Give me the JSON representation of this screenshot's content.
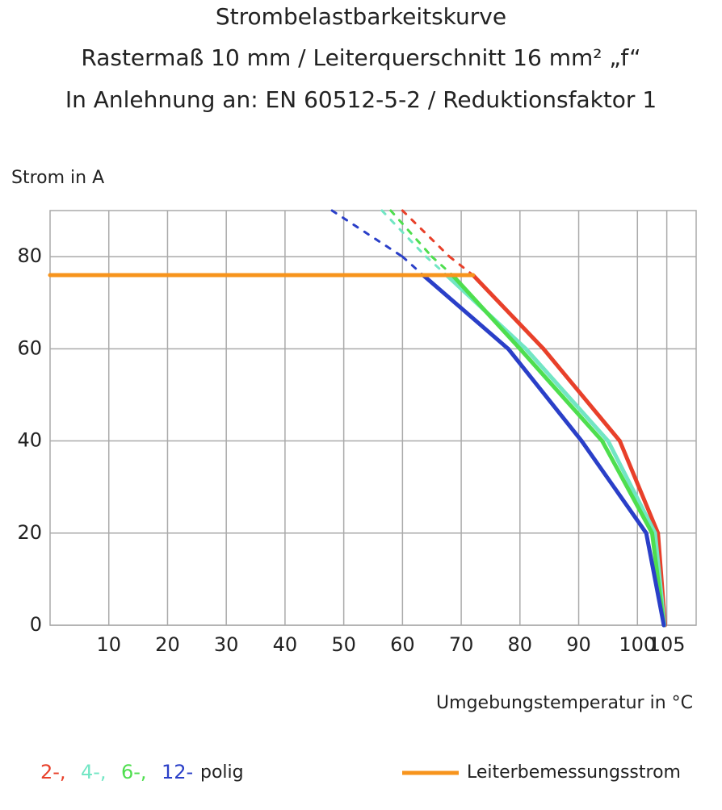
{
  "chart_data": {
    "type": "line",
    "title": "Strombelastbarkeitskurve",
    "subtitle": "Rastermaß 10 mm / Leiterquerschnitt 16 mm² „f“",
    "subtitle2": "In Anlehnung an: EN 60512-5-2 / Reduktionsfaktor 1",
    "y_label": "Strom in A",
    "x_label": "Umgebungstemperatur in °C",
    "xlim": [
      0,
      110
    ],
    "xticks": [
      10,
      20,
      30,
      40,
      50,
      60,
      70,
      80,
      90,
      100,
      105
    ],
    "ylim": [
      0,
      90
    ],
    "yticks": [
      0,
      20,
      40,
      60,
      80
    ],
    "grid": true,
    "rated_current_threshold": 76,
    "legend_suffix": "polig",
    "series": [
      {
        "name": "2-,",
        "color": "#e8402a",
        "x": [
          60,
          68,
          72,
          84,
          97,
          103.5,
          104.7
        ],
        "values": [
          90,
          80,
          76,
          60,
          40,
          20,
          0
        ]
      },
      {
        "name": "4-,",
        "color": "#72e6c4",
        "x": [
          56.5,
          64,
          67.5,
          81,
          95,
          103,
          104.6
        ],
        "values": [
          90,
          80,
          76,
          60,
          40,
          20,
          0
        ]
      },
      {
        "name": "6-,",
        "color": "#4ede4e",
        "x": [
          58,
          65,
          68.5,
          80,
          94,
          102.5,
          104.5
        ],
        "values": [
          90,
          80,
          76,
          60,
          40,
          20,
          0
        ]
      },
      {
        "name": "12-",
        "color": "#2a3fc8",
        "x": [
          48,
          60,
          63.5,
          78,
          90.5,
          101.5,
          104.5
        ],
        "values": [
          90,
          80,
          76,
          60,
          40,
          20,
          0
        ]
      },
      {
        "name": "Leiterbemessungsstrom",
        "color": "#f7941d",
        "x": [
          0,
          72
        ],
        "values": [
          76,
          76
        ]
      }
    ]
  }
}
